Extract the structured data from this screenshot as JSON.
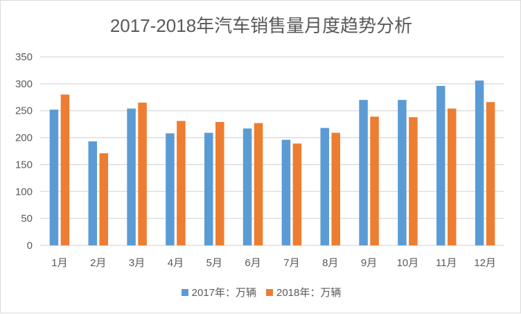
{
  "chart_data": {
    "type": "bar",
    "title": "2017-2018年汽车销售量月度趋势分析",
    "categories": [
      "1月",
      "2月",
      "3月",
      "4月",
      "5月",
      "6月",
      "7月",
      "8月",
      "9月",
      "10月",
      "11月",
      "12月"
    ],
    "series": [
      {
        "name": "2017年：万辆",
        "color": "#5b9bd5",
        "values": [
          252,
          193,
          254,
          208,
          209,
          217,
          196,
          218,
          270,
          270,
          296,
          306
        ]
      },
      {
        "name": "2018年：万辆",
        "color": "#ed7d31",
        "values": [
          280,
          171,
          265,
          231,
          229,
          227,
          189,
          209,
          239,
          238,
          254,
          266
        ]
      }
    ],
    "ylim": [
      0,
      350
    ],
    "yticks": [
      0,
      50,
      100,
      150,
      200,
      250,
      300,
      350
    ],
    "xlabel": "",
    "ylabel": "",
    "grid": true,
    "legend": "bottom"
  }
}
